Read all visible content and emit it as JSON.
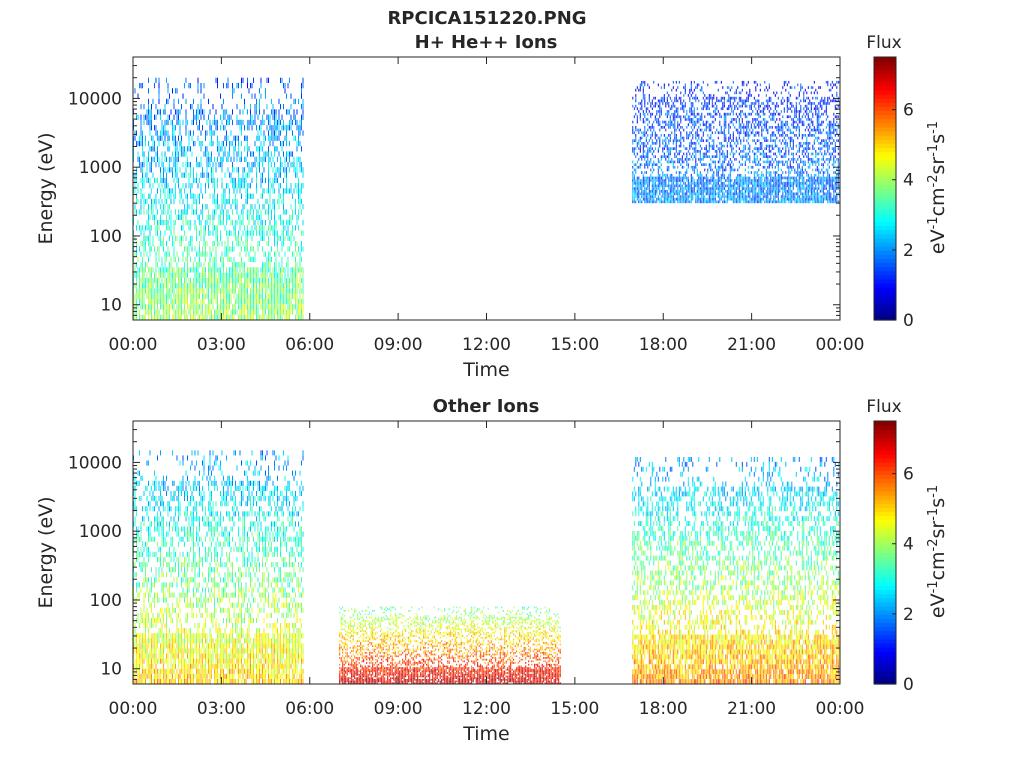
{
  "figure": {
    "title": "RPCICA151220.PNG"
  },
  "chart_data": [
    {
      "type": "heatmap",
      "title": "H+ He++ Ions",
      "xlabel": "Time",
      "ylabel": "Energy (eV)",
      "x_ticks": [
        "00:00",
        "03:00",
        "06:00",
        "09:00",
        "12:00",
        "15:00",
        "18:00",
        "21:00",
        "00:00"
      ],
      "xlim_hours": [
        0,
        24
      ],
      "y_scale": "log",
      "ylim": [
        6,
        40000
      ],
      "y_ticks": [
        10,
        100,
        1000,
        10000
      ],
      "y_tick_labels": [
        "10",
        "100",
        "1000",
        "10000"
      ],
      "colorbar": {
        "label": "Flux",
        "unit": "eV-1cm-2sr-1s-1",
        "range": [
          0,
          7.5
        ],
        "ticks": [
          "0",
          "2",
          "4",
          "6"
        ],
        "colormap": "jet"
      },
      "data_intervals": [
        {
          "start_hour": 0.0,
          "end_hour": 5.8,
          "min_eV": 6,
          "max_eV": 20000,
          "low_energy_flux": 4.0,
          "high_energy_flux": 1.5
        },
        {
          "start_hour": 16.95,
          "end_hour": 24.0,
          "min_eV": 300,
          "max_eV": 18000,
          "low_energy_flux": 2.0,
          "high_energy_flux": 1.2
        }
      ],
      "grid": false
    },
    {
      "type": "heatmap",
      "title": "Other Ions",
      "xlabel": "Time",
      "ylabel": "Energy (eV)",
      "x_ticks": [
        "00:00",
        "03:00",
        "06:00",
        "09:00",
        "12:00",
        "15:00",
        "18:00",
        "21:00",
        "00:00"
      ],
      "xlim_hours": [
        0,
        24
      ],
      "y_scale": "log",
      "ylim": [
        6,
        40000
      ],
      "y_ticks": [
        10,
        100,
        1000,
        10000
      ],
      "y_tick_labels": [
        "10",
        "100",
        "1000",
        "10000"
      ],
      "colorbar": {
        "label": "Flux",
        "unit": "eV-1cm-2sr-1s-1",
        "range": [
          0,
          7.5
        ],
        "ticks": [
          "0",
          "2",
          "4",
          "6"
        ],
        "colormap": "jet"
      },
      "data_intervals": [
        {
          "start_hour": 0.0,
          "end_hour": 5.8,
          "min_eV": 6,
          "max_eV": 15000,
          "low_energy_flux": 5.0,
          "high_energy_flux": 2.0
        },
        {
          "start_hour": 7.0,
          "end_hour": 14.5,
          "min_eV": 6,
          "max_eV": 80,
          "low_energy_flux": 7.0,
          "high_energy_flux": 3.5
        },
        {
          "start_hour": 16.95,
          "end_hour": 24.0,
          "min_eV": 6,
          "max_eV": 12000,
          "low_energy_flux": 5.5,
          "high_energy_flux": 2.0
        }
      ],
      "grid": false
    }
  ]
}
